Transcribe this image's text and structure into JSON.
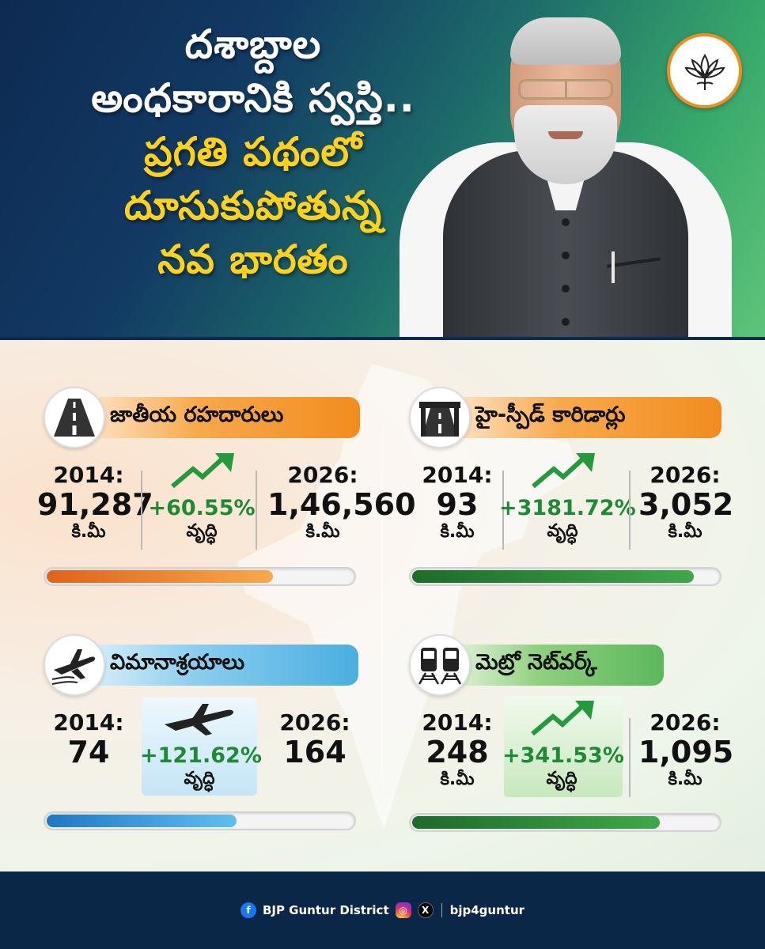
{
  "header": {
    "headline_lines": [
      "దశాబ్దాల",
      "అంధకారానికి స్వస్తి..",
      "ప్రగతి పథంలో",
      "దూసుకుపోతున్న",
      "నవ భారతం"
    ],
    "colors": {
      "white": "#ffffff",
      "yellow": "#ffd21a",
      "navy": "#0d2a52",
      "green": "#5fc47a"
    }
  },
  "panels": {
    "highways": {
      "title": "జాతీయ రహదారులు",
      "icon": "road-icon",
      "accent": "#f28c1f",
      "start_year": "2014:",
      "start_value": "91,287",
      "start_unit": "కి.మీ",
      "growth_pct": "+60.55%",
      "growth_label": "వృద్ధి",
      "end_year": "2026:",
      "end_value": "1,46,560",
      "end_unit": "కి.మీ",
      "progress": 0.74
    },
    "corridors": {
      "title": "హై-స్పీడ్ కారిడార్లు",
      "icon": "expressway-icon",
      "accent": "#f28c1f",
      "start_year": "2014:",
      "start_value": "93",
      "start_unit": "కి.మీ",
      "growth_pct": "+3181.72%",
      "growth_label": "వృద్ధి",
      "end_year": "2026:",
      "end_value": "3,052",
      "end_unit": "కి.మీ",
      "progress": 0.92
    },
    "airports": {
      "title": "విమానాశ్రయాలు",
      "icon": "airplane-icon",
      "accent": "#4aaee0",
      "start_year": "2014:",
      "start_value": "74",
      "growth_pct": "+121.62%",
      "growth_label": "వృద్ధి",
      "end_year": "2026:",
      "end_value": "164",
      "progress": 0.62
    },
    "metro": {
      "title": "మెట్రో నెట్‌వర్క్",
      "icon": "metro-train-icon",
      "accent": "#5cb85c",
      "start_year": "2014:",
      "start_value": "248",
      "start_unit": "కి.మీ",
      "growth_pct": "+341.53%",
      "growth_label": "వృద్ధి",
      "end_year": "2026:",
      "end_value": "1,095",
      "end_unit": "కి.మీ",
      "progress": 0.81
    }
  },
  "footer": {
    "facebook_handle": "BJP Guntur District",
    "social_handle": "bjp4guntur",
    "icons": [
      "facebook-icon",
      "instagram-icon",
      "x-icon"
    ]
  }
}
